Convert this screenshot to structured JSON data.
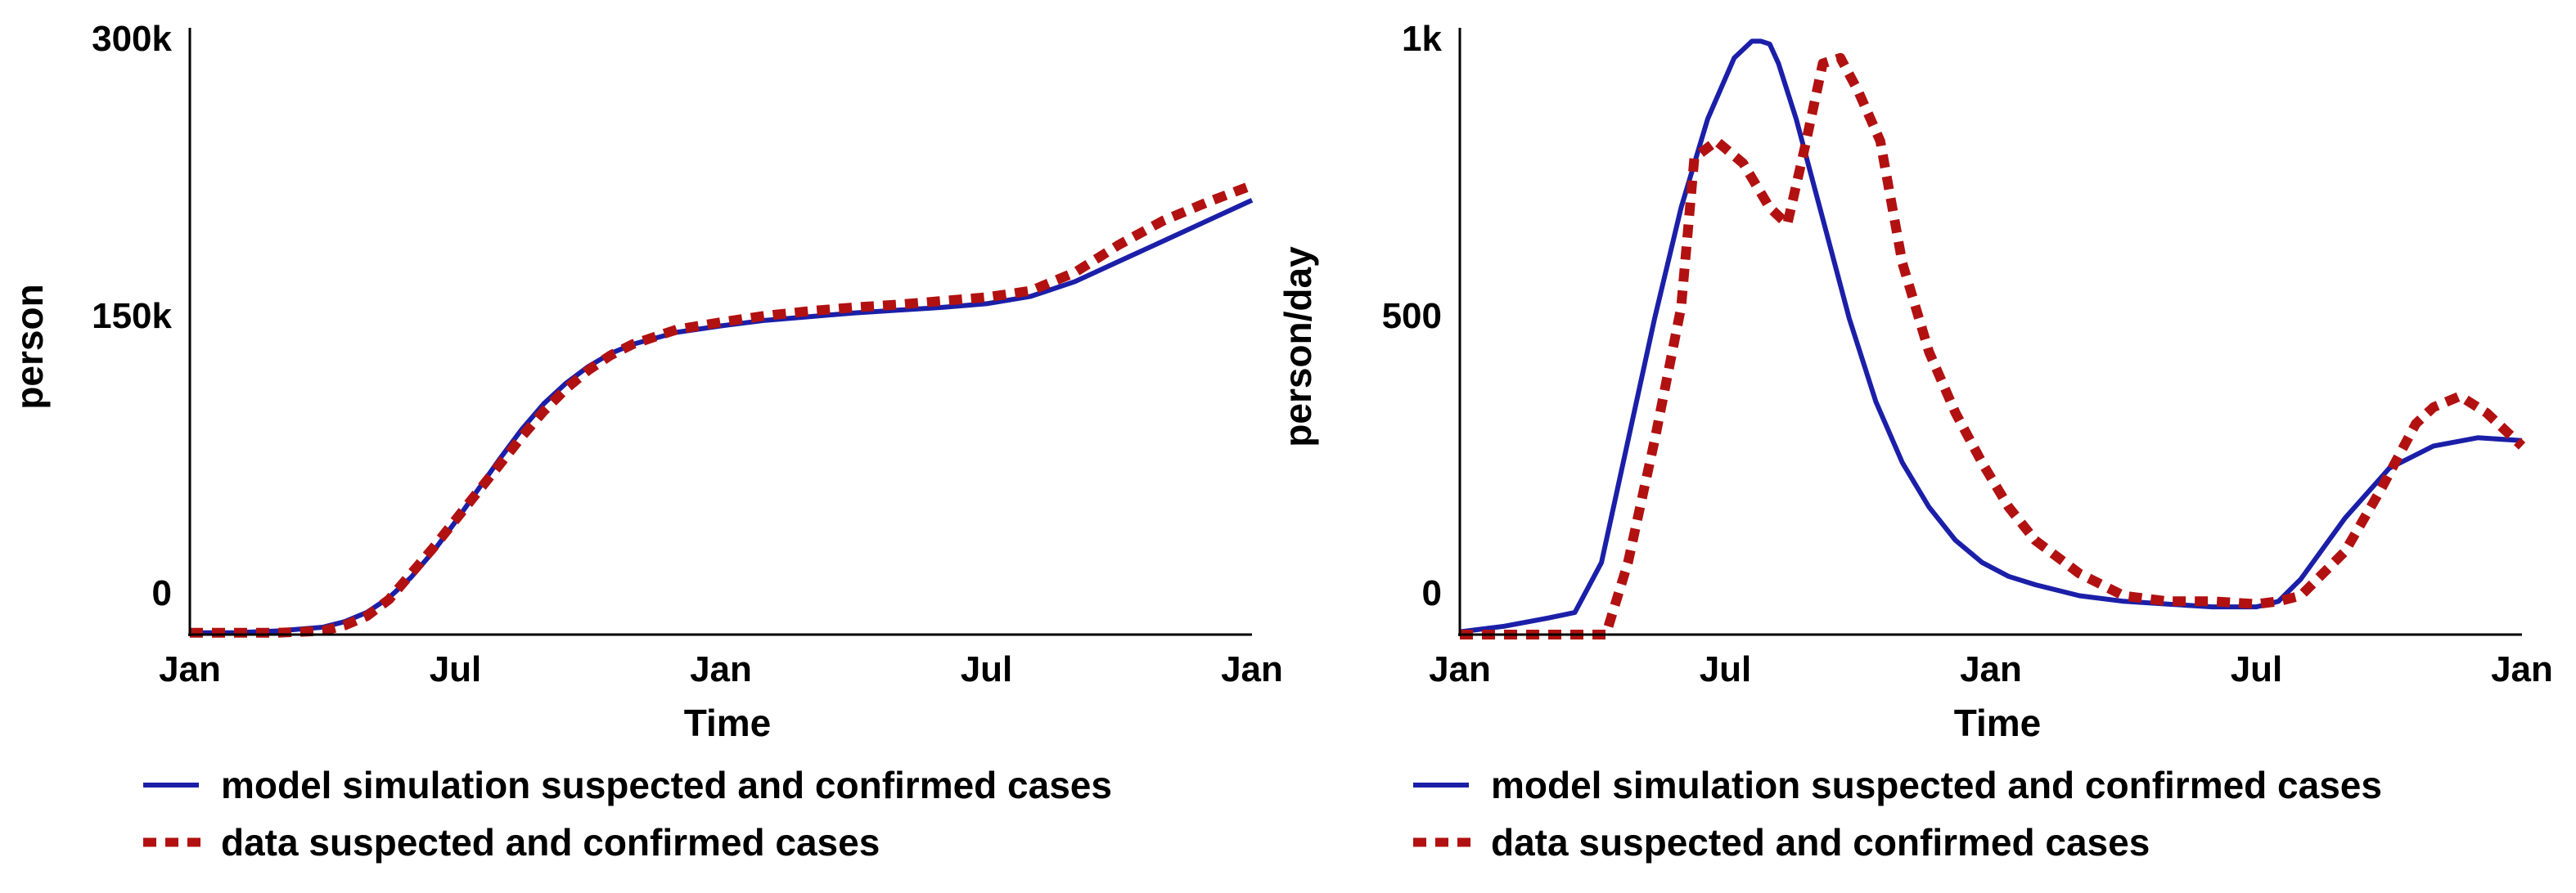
{
  "colors": {
    "model": "#1b1fa8",
    "data": "#b21111",
    "axis": "#000000"
  },
  "chart_data": [
    {
      "type": "line",
      "title": "",
      "xlabel": "Time",
      "ylabel": "person",
      "xlim": [
        0,
        24
      ],
      "ylim": [
        -15000,
        300000
      ],
      "xticks": [
        {
          "value": 0,
          "label": "Jan"
        },
        {
          "value": 6,
          "label": "Jul"
        },
        {
          "value": 12,
          "label": "Jan"
        },
        {
          "value": 18,
          "label": "Jul"
        },
        {
          "value": 24,
          "label": "Jan"
        }
      ],
      "yticks": [
        {
          "value": 0,
          "label": "0"
        },
        {
          "value": 150000,
          "label": "150k"
        },
        {
          "value": 300000,
          "label": "300k"
        }
      ],
      "grid": false,
      "legend_position": "bottom",
      "series": [
        {
          "name": "model simulation suspected and confirmed cases",
          "style": "solid",
          "color": "#1b1fa8",
          "x": [
            0,
            1,
            2,
            3,
            3.5,
            4,
            4.5,
            5,
            5.5,
            6,
            6.5,
            7,
            7.5,
            8,
            8.5,
            9,
            9.5,
            10,
            11,
            12,
            13,
            14,
            15,
            16,
            17,
            18,
            19,
            20,
            21,
            22,
            23,
            24
          ],
          "y": [
            -14000,
            -14000,
            -13000,
            -11000,
            -8000,
            -3000,
            5000,
            16000,
            30000,
            46000,
            63000,
            80000,
            96000,
            110000,
            121000,
            130000,
            137000,
            142000,
            148500,
            152000,
            155000,
            157000,
            159000,
            160500,
            162000,
            164000,
            168000,
            176000,
            187000,
            198000,
            209000,
            220000
          ]
        },
        {
          "name": "data suspected and confirmed cases",
          "style": "dotted",
          "color": "#b21111",
          "x": [
            0,
            1,
            2,
            3,
            3.5,
            4,
            4.5,
            5,
            5.5,
            6,
            6.5,
            7,
            7.5,
            8,
            8.5,
            9,
            9.5,
            10,
            11,
            12,
            13,
            14,
            15,
            16,
            17,
            18,
            19,
            20,
            21,
            22,
            23,
            24
          ],
          "y": [
            -14000,
            -14000,
            -14000,
            -13000,
            -10000,
            -5000,
            4000,
            18000,
            32000,
            47000,
            62000,
            77000,
            92000,
            106000,
            118000,
            128000,
            136000,
            142000,
            150000,
            154000,
            157500,
            160000,
            162000,
            163500,
            165500,
            167500,
            171000,
            181000,
            196000,
            209000,
            219000,
            228000
          ]
        }
      ]
    },
    {
      "type": "line",
      "title": "",
      "xlabel": "Time",
      "ylabel": "person/day",
      "xlim": [
        0,
        24
      ],
      "ylim": [
        -50,
        1000
      ],
      "xticks": [
        {
          "value": 0,
          "label": "Jan"
        },
        {
          "value": 6,
          "label": "Jul"
        },
        {
          "value": 12,
          "label": "Jan"
        },
        {
          "value": 18,
          "label": "Jul"
        },
        {
          "value": 24,
          "label": "Jan"
        }
      ],
      "yticks": [
        {
          "value": 0,
          "label": "0"
        },
        {
          "value": 500,
          "label": "500"
        },
        {
          "value": 1000,
          "label": "1k"
        }
      ],
      "grid": false,
      "legend_position": "bottom",
      "series": [
        {
          "name": "model simulation suspected and confirmed cases",
          "style": "solid",
          "color": "#1b1fa8",
          "x": [
            0,
            1,
            2,
            2.6,
            3.2,
            3.8,
            4.4,
            5,
            5.6,
            6.2,
            6.6,
            6.8,
            7.0,
            7.2,
            7.6,
            8.2,
            8.8,
            9.4,
            10,
            10.6,
            11.2,
            11.8,
            12.4,
            13,
            14,
            15,
            16,
            17,
            18,
            18.5,
            19,
            20,
            21,
            22,
            23,
            24
          ],
          "y": [
            -45,
            -35,
            -20,
            -10,
            80,
            300,
            520,
            720,
            880,
            990,
            1020,
            1020,
            1015,
            980,
            880,
            700,
            520,
            370,
            260,
            180,
            120,
            80,
            55,
            40,
            20,
            10,
            5,
            0,
            0,
            10,
            50,
            160,
            250,
            290,
            305,
            300
          ]
        },
        {
          "name": "data suspected and confirmed cases",
          "style": "dotted",
          "color": "#b21111",
          "x": [
            0,
            1,
            2,
            3,
            3.3,
            3.8,
            4.4,
            5,
            5.3,
            5.8,
            6.4,
            7.0,
            7.4,
            7.8,
            8.2,
            8.6,
            9.0,
            9.5,
            10,
            10.6,
            11.2,
            11.8,
            12.4,
            13,
            14,
            15,
            16,
            17,
            18,
            18.5,
            19,
            20,
            20.8,
            21.6,
            22,
            22.6,
            23.2,
            24
          ],
          "y": [
            -50,
            -50,
            -50,
            -50,
            -50,
            80,
            300,
            540,
            810,
            840,
            800,
            720,
            690,
            830,
            980,
            990,
            930,
            840,
            620,
            460,
            350,
            260,
            180,
            120,
            60,
            20,
            10,
            10,
            5,
            10,
            20,
            100,
            210,
            330,
            360,
            380,
            350,
            290
          ]
        }
      ]
    }
  ]
}
